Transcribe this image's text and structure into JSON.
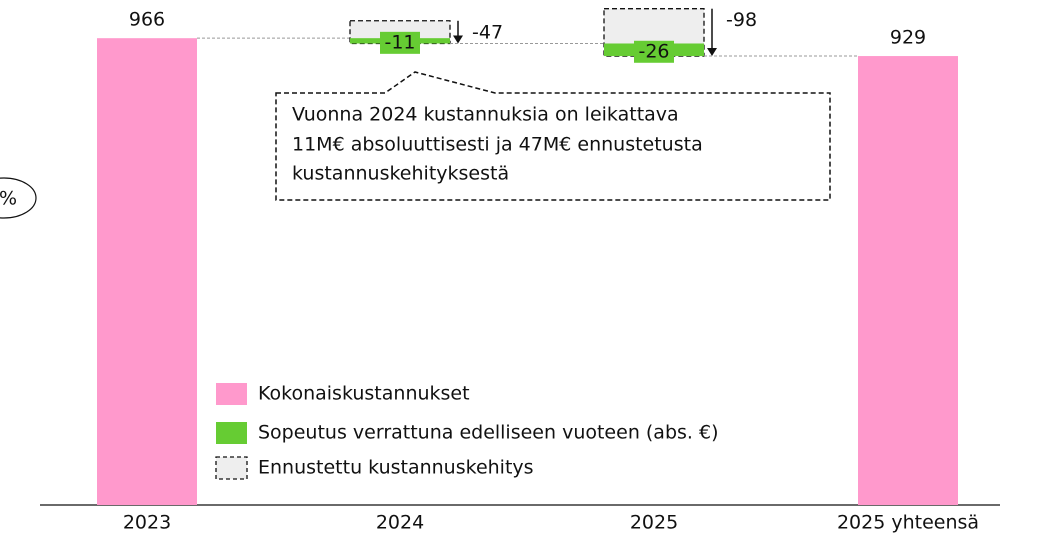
{
  "chart_data": {
    "type": "waterfall",
    "categories": [
      "2023",
      "2024",
      "2025",
      "2025 yhteensä"
    ],
    "series": [
      {
        "name": "Kokonaiskustannukset",
        "color": "#ff99cc",
        "values": [
          966,
          null,
          null,
          929
        ]
      },
      {
        "name": "Sopeutus verrattuna edelliseen vuoteen (abs. €)",
        "color": "#66cc33",
        "values": [
          null,
          -11,
          -26,
          null
        ]
      },
      {
        "name": "Ennustettu kustannuskehitys",
        "color": "#eeeeee",
        "values": [
          null,
          -47,
          -98,
          null
        ]
      }
    ],
    "ylim": [
      0,
      1045
    ],
    "annotation_lines": [
      "Vuonna 2024 kustannuksia on leikattava",
      "11M€ absoluuttisesti ja 47M€ ennustetusta",
      "kustannuskehityksestä"
    ],
    "side_mark": "%"
  }
}
